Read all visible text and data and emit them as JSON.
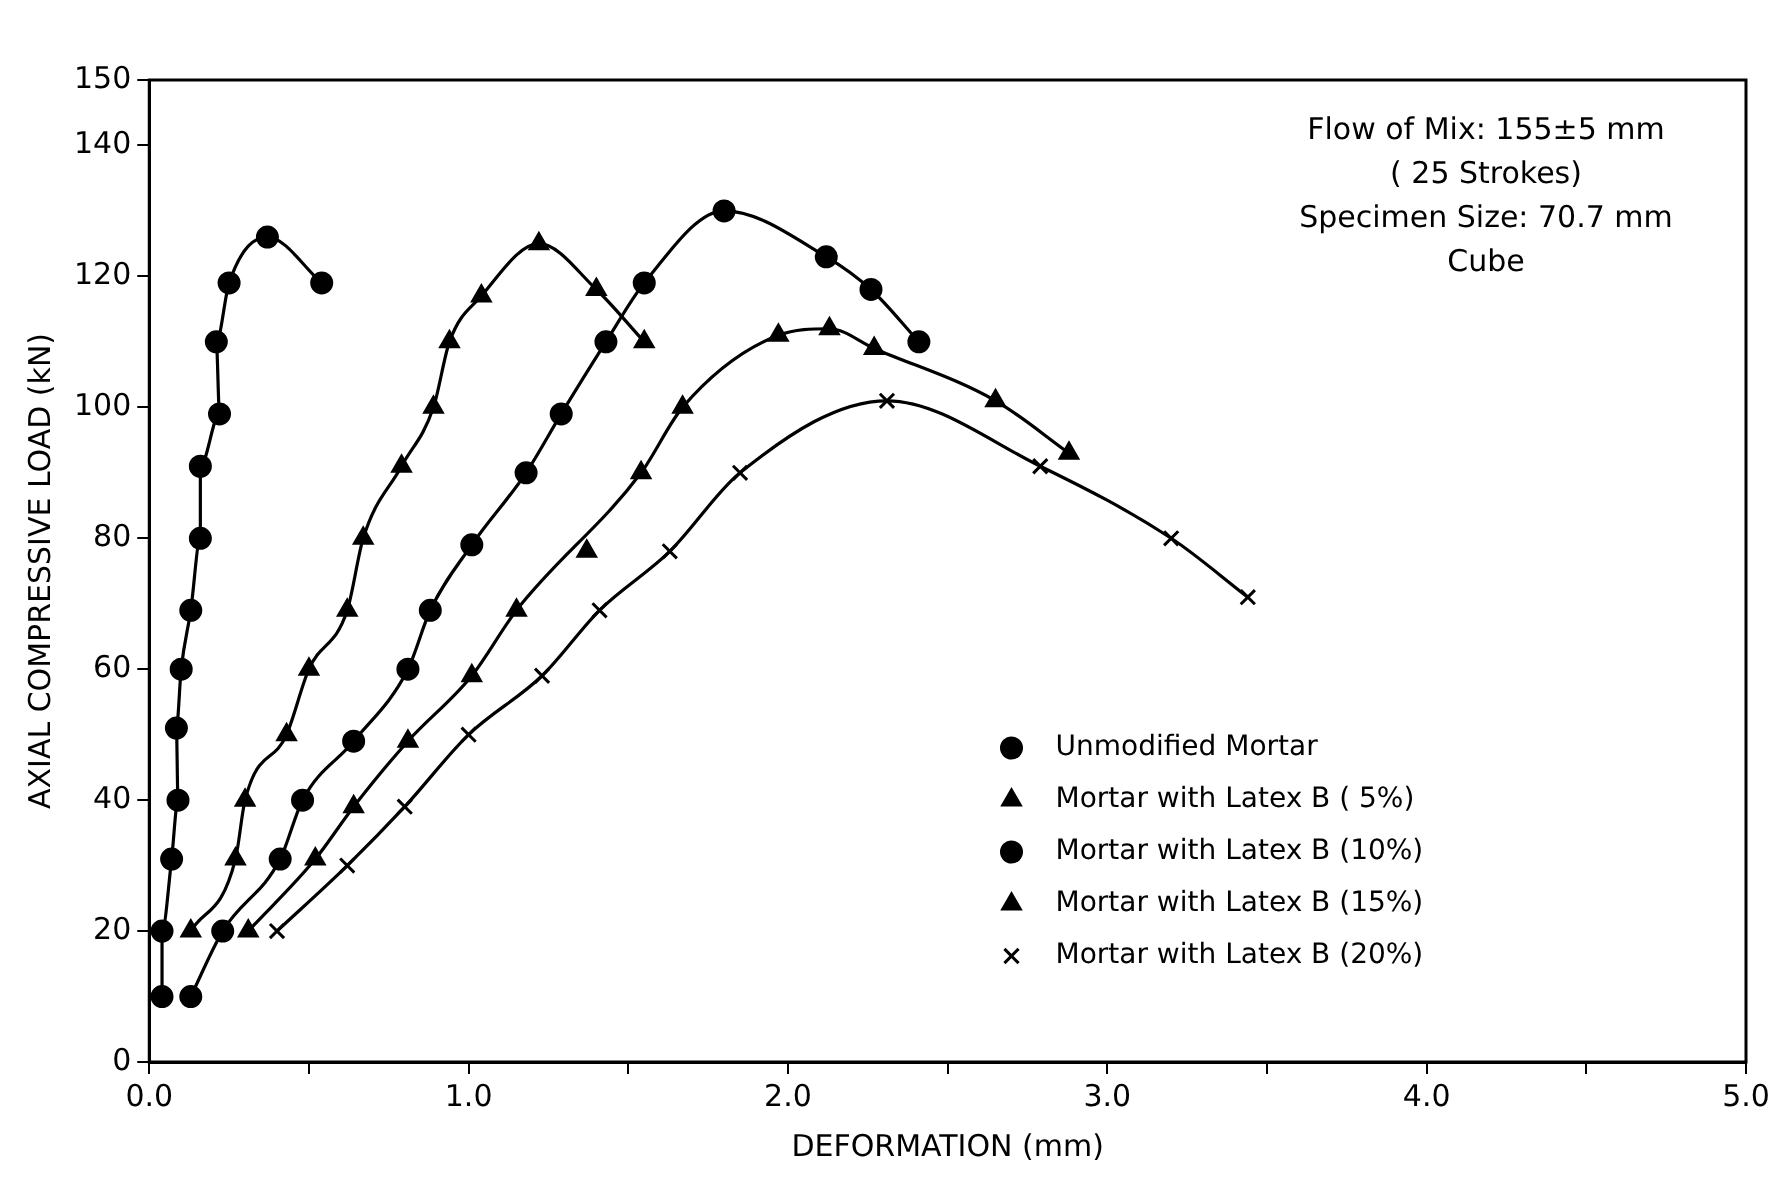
{
  "chart_data": {
    "type": "line",
    "xlabel": "DEFORMATION (mm)",
    "ylabel": "AXIAL COMPRESSIVE LOAD (kN)",
    "annotations": [
      "Flow of Mix: 155±5 mm",
      "( 25 Strokes)",
      "Specimen Size: 70.7 mm",
      "Cube"
    ],
    "xlim": [
      0,
      5
    ],
    "ylim": [
      0,
      150
    ],
    "xticks": [
      {
        "value": 0,
        "label": "0.0"
      },
      {
        "value": 0.5,
        "label": null
      },
      {
        "value": 1,
        "label": "1.0"
      },
      {
        "value": 1.5,
        "label": null
      },
      {
        "value": 2,
        "label": "2.0"
      },
      {
        "value": 2.5,
        "label": null
      },
      {
        "value": 3,
        "label": "3.0"
      },
      {
        "value": 3.5,
        "label": null
      },
      {
        "value": 4,
        "label": "4.0"
      },
      {
        "value": 4.5,
        "label": null
      },
      {
        "value": 5,
        "label": "5.0"
      }
    ],
    "yticks": [
      0,
      20,
      40,
      60,
      80,
      100,
      120,
      140,
      150
    ],
    "grid": false,
    "legend": "bottom right",
    "series": [
      {
        "name": "Unmodified Mortar",
        "color": "#000000",
        "marker": "circle",
        "x": [
          0.04,
          0.04,
          0.07,
          0.09,
          0.085,
          0.1,
          0.13,
          0.16,
          0.16,
          0.22,
          0.21,
          0.25,
          0.37,
          0.54
        ],
        "values": [
          10,
          20,
          31,
          40,
          51,
          60,
          69,
          80,
          91,
          99,
          110,
          119,
          126,
          119
        ]
      },
      {
        "name": "Mortar with Latex B ( 5%)",
        "color": "#000000",
        "marker": "triangle",
        "x": [
          0.13,
          0.27,
          0.3,
          0.43,
          0.5,
          0.62,
          0.67,
          0.79,
          0.89,
          0.94,
          1.04,
          1.22,
          1.4,
          1.55
        ],
        "values": [
          20,
          31,
          40,
          50,
          60,
          69,
          80,
          91,
          100,
          110,
          117,
          125,
          118,
          110
        ]
      },
      {
        "name": "Mortar with Latex B (10%)",
        "color": "#000000",
        "marker": "circle",
        "x": [
          0.13,
          0.23,
          0.41,
          0.48,
          0.64,
          0.81,
          0.88,
          1.01,
          1.18,
          1.29,
          1.43,
          1.55,
          1.8,
          2.12,
          2.26,
          2.41
        ],
        "values": [
          10,
          20,
          31,
          40,
          49,
          60,
          69,
          79,
          90,
          99,
          110,
          119,
          130,
          123,
          118,
          110
        ]
      },
      {
        "name": "Mortar with Latex B (15%)",
        "color": "#000000",
        "marker": "triangle",
        "x": [
          0.31,
          0.52,
          0.64,
          0.81,
          1.01,
          1.15,
          1.54,
          1.67,
          1.97,
          2.13,
          2.27,
          2.65,
          2.88
        ],
        "values": [
          20,
          31,
          39,
          49,
          59,
          69,
          90,
          100,
          111,
          112,
          109,
          101,
          93
        ]
      },
      {
        "name": "Mortar with Latex B (20%)",
        "color": "#000000",
        "marker": "cross",
        "x": [
          0.4,
          0.62,
          0.8,
          1.0,
          1.23,
          1.41,
          1.63,
          1.85,
          2.31,
          2.79,
          3.2,
          3.44
        ],
        "values": [
          20,
          30,
          39,
          50,
          59,
          69,
          78,
          90,
          101,
          91,
          80,
          71
        ]
      },
      {
        "type": "scatter",
        "color": "#000000",
        "marker": "triangle",
        "x": [
          1.37
        ],
        "values": [
          78
        ]
      }
    ]
  }
}
